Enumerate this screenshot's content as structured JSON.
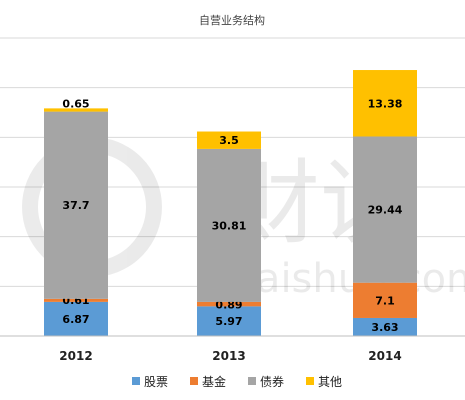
{
  "watermark": {
    "text": "Caishuo.com",
    "glyphs": "财说"
  },
  "chart_data": {
    "type": "bar",
    "stacked": true,
    "title": "自营业务结构",
    "categories": [
      "2012",
      "2013",
      "2014"
    ],
    "series": [
      {
        "name": "股票",
        "color": "#5b9bd5",
        "values": [
          6.87,
          5.97,
          3.63
        ]
      },
      {
        "name": "基金",
        "color": "#ed7d31",
        "values": [
          0.61,
          0.89,
          7.1
        ]
      },
      {
        "name": "债券",
        "color": "#a5a5a5",
        "values": [
          37.7,
          30.81,
          29.44
        ]
      },
      {
        "name": "其他",
        "color": "#ffc000",
        "values": [
          0.65,
          3.5,
          13.38
        ]
      }
    ],
    "ylim": [
      0,
      60
    ],
    "grid": true,
    "legend_position": "bottom"
  }
}
